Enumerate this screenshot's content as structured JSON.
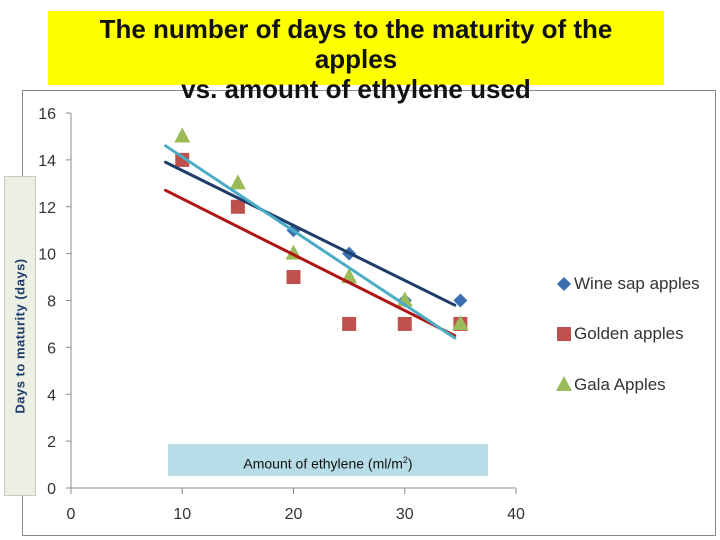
{
  "title_lines": [
    "The number of days to the maturity of the",
    "apples",
    "vs. amount of  ethylene used"
  ],
  "ylabel": "Days to maturity (days)",
  "xlabel_main": "Amount of ethylene (ml/m",
  "xlabel_sup": "2",
  "xlabel_close": ")",
  "chart_data": {
    "type": "scatter",
    "title": "The number of days to the maturity of the apples vs. amount of  ethylene used",
    "xlabel": "Amount of ethylene (ml/m2)",
    "ylabel": "Days to maturity (days)",
    "xlim": [
      0,
      40
    ],
    "ylim": [
      0,
      16
    ],
    "xticks": [
      0,
      10,
      20,
      30,
      40
    ],
    "yticks": [
      0,
      2,
      4,
      6,
      8,
      10,
      12,
      14,
      16
    ],
    "legend_position": "right",
    "series": [
      {
        "name": "Wine sap apples",
        "marker": "diamond",
        "color": "#3a6fb0",
        "line_color": "#1f3d6b",
        "x": [
          10,
          15,
          20,
          25,
          30,
          35
        ],
        "y": [
          14,
          12,
          11,
          10,
          8,
          8
        ],
        "trendline": {
          "x": [
            8.5,
            34.5
          ],
          "y": [
            13.9,
            7.8
          ]
        }
      },
      {
        "name": "Golden apples",
        "marker": "square",
        "color": "#c0504d",
        "line_color": "#b01515",
        "x": [
          10,
          15,
          20,
          25,
          30,
          35
        ],
        "y": [
          14,
          12,
          9,
          7,
          7,
          7
        ],
        "trendline": {
          "x": [
            8.5,
            34.5
          ],
          "y": [
            12.7,
            6.5
          ]
        }
      },
      {
        "name": "Gala Apples",
        "marker": "triangle",
        "color": "#9bbb59",
        "line_color": "#4bacc6",
        "x": [
          10,
          15,
          20,
          25,
          30,
          35
        ],
        "y": [
          15,
          13,
          10,
          9,
          8,
          7
        ],
        "trendline": {
          "x": [
            8.5,
            34.5
          ],
          "y": [
            14.6,
            6.4
          ]
        }
      }
    ]
  }
}
